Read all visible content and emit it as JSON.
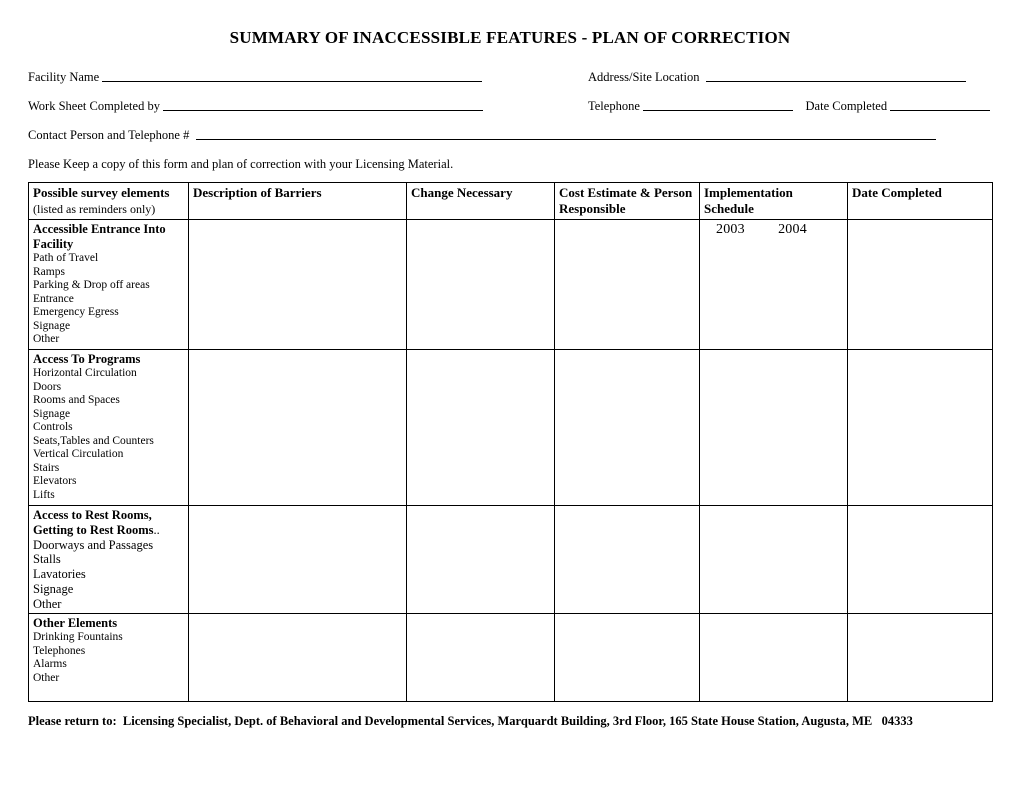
{
  "title": "SUMMARY OF INACCESSIBLE FEATURES - PLAN OF CORRECTION",
  "labels": {
    "facility": "Facility Name",
    "address": "Address/Site Location",
    "completedBy": "Work Sheet Completed by",
    "telephone": "Telephone",
    "dateCompleted": "Date Completed",
    "contact": "Contact Person and Telephone #"
  },
  "note": "Please Keep a copy of this form and plan  of correction with  your  Licensing Material.",
  "table": {
    "headers": {
      "survey": "Possible survey elements",
      "surveySub": "(listed as reminders only)",
      "barriers": "Description of Barriers",
      "change": "Change Necessary",
      "cost": "Cost Estimate & Person Responsible",
      "impl": "Implementation Schedule",
      "date": "Date Completed"
    },
    "implYears": "2003         2004",
    "sections": [
      {
        "head": "Accessible Entrance Into Facility",
        "items": [
          "Path of Travel",
          "Ramps",
          "Parking & Drop off areas",
          "Entrance",
          "Emergency Egress",
          "Signage",
          "Other"
        ],
        "itemClass": "survey-items"
      },
      {
        "head": "Access To Programs",
        "items": [
          "Horizontal Circulation",
          "Doors",
          "Rooms and Spaces",
          "Signage",
          "Controls",
          "Seats,Tables and Counters",
          "Vertical Circulation",
          "Stairs",
          "Elevators",
          "Lifts"
        ],
        "itemClass": "survey-items"
      },
      {
        "head": "Access to Rest Rooms, Getting to Rest Rooms",
        "headSuffix": "..",
        "items": [
          "Doorways and Passages",
          "Stalls",
          "Lavatories",
          "Signage",
          "Other"
        ],
        "itemClass": "rest-items"
      },
      {
        "head": "Other Elements",
        "items": [
          "Drinking Fountains",
          "Telephones",
          "Alarms",
          "Other"
        ],
        "itemClass": "survey-items",
        "extraPad": true
      }
    ]
  },
  "footer": "Please return to:  Licensing Specialist, Dept. of Behavioral and Developmental Services, Marquardt Building, 3rd Floor, 165 State House Station, Augusta, ME   04333"
}
